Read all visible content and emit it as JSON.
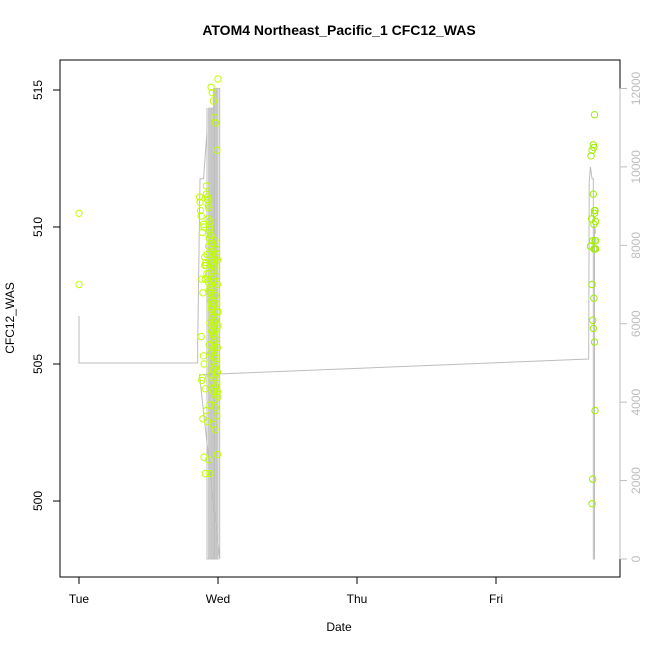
{
  "chart_data": {
    "type": "scatter",
    "title": "ATOM4 Northeast_Pacific_1 CFC12_WAS",
    "xlabel": "Date",
    "ylabel": "CFC12_WAS",
    "x_ticks": [
      "Tue",
      "Wed",
      "Thu",
      "Fri"
    ],
    "xlim": [
      "Tue 00:00",
      "Fri 21:00"
    ],
    "ylim": [
      499.1,
      515.5
    ],
    "y_ticks": [
      500,
      505,
      510,
      515
    ],
    "y2lim": [
      -300,
      12300
    ],
    "y2_ticks": [
      0,
      2000,
      4000,
      6000,
      8000,
      10000,
      12000
    ],
    "grid": false,
    "legend": "none",
    "colors": {
      "points": "#c0ff00",
      "points_alt": "#9fee00",
      "line": "#bdbdbd",
      "axis": "#000000",
      "right_axis": "#bdbdbd"
    },
    "series": [
      {
        "kind": "points",
        "x_hours": [
          0,
          0,
          20.8,
          20.9,
          21.0,
          21.1,
          21.3,
          21.5,
          21.6,
          21.7,
          21.8,
          21.2,
          21.4,
          22.0,
          22.2,
          22.3,
          22.5,
          22.1,
          21.9,
          22.4,
          22.6,
          22.7,
          22.8,
          22.9,
          23.0,
          23.1,
          23.2,
          23.3,
          23.4,
          23.5,
          23.6,
          23.7,
          23.8,
          23.9,
          24.0,
          22.5,
          22.8,
          23.0,
          23.2,
          23.4,
          23.6,
          23.8,
          22.6,
          22.9,
          23.1,
          23.3,
          23.5,
          23.7,
          23.9,
          22.7,
          23.0,
          23.2,
          23.4,
          23.6,
          23.8,
          22.4,
          22.6,
          22.8,
          23.0,
          23.2,
          23.4,
          23.6,
          23.8,
          24.0,
          22.3,
          22.5,
          22.7,
          22.9,
          23.1,
          23.3,
          23.5,
          23.7,
          23.9,
          21.7,
          21.9,
          22.1,
          22.3,
          22.5,
          22.7,
          22.9,
          23.1,
          23.3,
          23.5,
          23.7,
          23.9,
          22.8,
          23.0,
          23.2,
          23.4,
          23.6,
          23.8,
          22.6,
          23.1,
          23.5,
          23.9,
          22.5,
          23.0,
          23.4,
          23.8,
          21.5,
          21.3,
          21.1,
          21.6,
          21.8,
          22.0,
          22.2,
          22.4,
          22.6,
          22.8,
          23.0,
          23.2,
          23.4,
          23.6,
          23.8,
          24.0,
          21.2,
          21.4,
          21.6,
          21.8,
          22.0,
          22.2,
          22.4,
          22.6,
          22.8,
          23.0,
          23.2,
          23.4,
          23.6,
          23.8,
          24.0,
          23.5,
          23.7,
          23.9,
          88.4,
          88.6,
          88.8,
          88.9,
          89.0,
          89.1,
          89.2,
          88.7,
          88.5,
          88.3,
          88.8,
          89.0,
          88.9,
          89.1,
          89.2,
          88.6,
          88.7,
          88.9,
          89.0,
          89.1,
          88.8,
          88.7,
          88.6,
          89.0,
          89.1,
          89.2,
          88.9
        ],
        "y": [
          510.5,
          507.9,
          511.1,
          510.9,
          510.6,
          510.4,
          509.8,
          510.1,
          510.0,
          508.6,
          508.1,
          508.1,
          507.6,
          511.2,
          511.0,
          510.8,
          509.9,
          509.0,
          508.7,
          508.3,
          507.9,
          507.6,
          507.3,
          507.0,
          506.7,
          506.4,
          506.1,
          505.8,
          505.5,
          505.2,
          504.9,
          504.6,
          504.3,
          504.0,
          503.8,
          505.7,
          505.4,
          505.1,
          504.8,
          504.5,
          504.2,
          503.9,
          506.5,
          506.2,
          505.9,
          505.6,
          505.3,
          505.0,
          504.7,
          507.8,
          507.5,
          507.2,
          506.9,
          506.6,
          506.3,
          509.3,
          509.0,
          508.7,
          508.4,
          508.1,
          507.8,
          507.5,
          507.2,
          506.9,
          510.3,
          510.0,
          509.7,
          509.4,
          509.1,
          508.8,
          508.5,
          508.2,
          507.9,
          508.9,
          508.6,
          508.3,
          508.0,
          507.7,
          507.4,
          507.1,
          506.8,
          506.5,
          506.2,
          505.9,
          505.6,
          504.6,
          504.3,
          504.0,
          503.7,
          503.4,
          503.1,
          503.5,
          502.8,
          502.6,
          501.7,
          509.6,
          509.4,
          509.2,
          508.9,
          505.3,
          504.5,
          506.0,
          505.0,
          504.1,
          503.3,
          502.9,
          501.5,
          501.0,
          515.1,
          514.9,
          514.6,
          514.0,
          513.8,
          512.8,
          515.4,
          504.4,
          503.0,
          501.6,
          501.0,
          511.5,
          511.1,
          510.7,
          510.2,
          509.7,
          509.1,
          508.6,
          508.0,
          507.5,
          506.9,
          506.4,
          509.5,
          509.2,
          508.8,
          512.6,
          512.8,
          513.0,
          512.9,
          514.1,
          510.6,
          510.2,
          509.5,
          510.3,
          509.3,
          511.2,
          510.5,
          509.2,
          509.5,
          509.2,
          507.9,
          506.6,
          507.4,
          505.8,
          503.3,
          506.3,
          500.8,
          499.9,
          510.6,
          509.2,
          509.5,
          510.1
        ]
      },
      {
        "kind": "line",
        "axis": "right",
        "x_hours": [
          0,
          0,
          20.5,
          20.5,
          20.9,
          21.5,
          22.1,
          22.1,
          22.1,
          22.4,
          22.4,
          22.6,
          22.6,
          22.8,
          22.8,
          23.0,
          23.0,
          23.2,
          23.2,
          23.4,
          23.4,
          23.6,
          23.6,
          23.8,
          23.8,
          24.0,
          24.0,
          24.3,
          24.3,
          20.8,
          88.0,
          88.1,
          88.3,
          88.6,
          88.8,
          88.8,
          89.0,
          89.0,
          89.2
        ],
        "y": [
          6200,
          5000,
          5000,
          5500,
          9700,
          9700,
          10900,
          11500,
          0,
          0,
          11500,
          11500,
          0,
          0,
          11500,
          11500,
          0,
          0,
          12000,
          12000,
          0,
          0,
          12000,
          12000,
          0,
          0,
          12000,
          12000,
          0,
          4700,
          5100,
          9600,
          10000,
          9700,
          9700,
          0,
          0,
          8500,
          8300
        ]
      }
    ]
  }
}
